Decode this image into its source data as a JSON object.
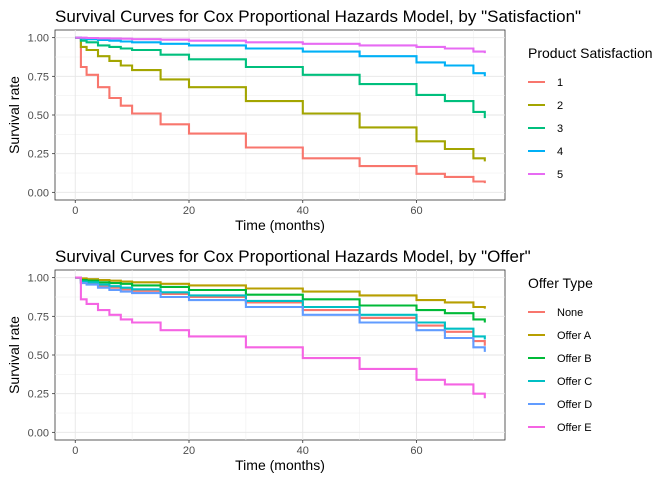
{
  "chart_data": [
    {
      "type": "line",
      "step": true,
      "title": "Survival Curves for Cox Proportional Hazards Model, by \"Satisfaction\"",
      "xlabel": "Time (months)",
      "ylabel": "Survival rate",
      "xlim": [
        0,
        72
      ],
      "ylim": [
        0,
        1
      ],
      "x_ticks": [
        0,
        20,
        40,
        60
      ],
      "y_ticks": [
        0.0,
        0.25,
        0.5,
        0.75,
        1.0
      ],
      "x_tick_labels": [
        "0",
        "20",
        "40",
        "60"
      ],
      "y_tick_labels": [
        "0.00",
        "0.25",
        "0.50",
        "0.75",
        "1.00"
      ],
      "grid": true,
      "legend": {
        "title": "Product Satisfaction",
        "position": "right"
      },
      "x": [
        0,
        1,
        2,
        4,
        6,
        8,
        10,
        15,
        20,
        30,
        40,
        50,
        60,
        65,
        70,
        72
      ],
      "series": [
        {
          "name": "1",
          "color": "#F8766D",
          "values": [
            1.0,
            0.81,
            0.76,
            0.68,
            0.61,
            0.56,
            0.51,
            0.44,
            0.38,
            0.29,
            0.22,
            0.17,
            0.12,
            0.1,
            0.07,
            0.06
          ]
        },
        {
          "name": "2",
          "color": "#A3A500",
          "values": [
            1.0,
            0.94,
            0.92,
            0.88,
            0.85,
            0.82,
            0.79,
            0.73,
            0.68,
            0.59,
            0.51,
            0.42,
            0.33,
            0.28,
            0.22,
            0.2
          ]
        },
        {
          "name": "3",
          "color": "#00BF7D",
          "values": [
            1.0,
            0.98,
            0.97,
            0.95,
            0.94,
            0.93,
            0.92,
            0.89,
            0.86,
            0.81,
            0.76,
            0.7,
            0.63,
            0.59,
            0.52,
            0.48
          ]
        },
        {
          "name": "4",
          "color": "#00B0F6",
          "values": [
            1.0,
            0.995,
            0.99,
            0.985,
            0.98,
            0.975,
            0.97,
            0.96,
            0.95,
            0.93,
            0.91,
            0.88,
            0.84,
            0.82,
            0.77,
            0.75
          ]
        },
        {
          "name": "5",
          "color": "#E76BF3",
          "values": [
            1.0,
            1.0,
            0.998,
            0.996,
            0.995,
            0.993,
            0.99,
            0.987,
            0.98,
            0.97,
            0.96,
            0.95,
            0.94,
            0.93,
            0.91,
            0.9
          ]
        }
      ]
    },
    {
      "type": "line",
      "step": true,
      "title": "Survival Curves for Cox Proportional Hazards Model, by \"Offer\"",
      "xlabel": "Time (months)",
      "ylabel": "Survival rate",
      "xlim": [
        0,
        72
      ],
      "ylim": [
        0,
        1
      ],
      "x_ticks": [
        0,
        20,
        40,
        60
      ],
      "y_ticks": [
        0.0,
        0.25,
        0.5,
        0.75,
        1.0
      ],
      "x_tick_labels": [
        "0",
        "20",
        "40",
        "60"
      ],
      "y_tick_labels": [
        "0.00",
        "0.25",
        "0.50",
        "0.75",
        "1.00"
      ],
      "grid": true,
      "legend": {
        "title": "Offer Type",
        "position": "right"
      },
      "x": [
        0,
        1,
        2,
        4,
        6,
        8,
        10,
        15,
        20,
        30,
        40,
        50,
        60,
        65,
        70,
        72
      ],
      "series": [
        {
          "name": "None",
          "color": "#F8766D",
          "values": [
            1.0,
            0.97,
            0.96,
            0.945,
            0.935,
            0.925,
            0.915,
            0.895,
            0.875,
            0.84,
            0.79,
            0.74,
            0.69,
            0.65,
            0.59,
            0.56
          ]
        },
        {
          "name": "Offer A",
          "color": "#B79F00",
          "values": [
            1.0,
            0.995,
            0.99,
            0.985,
            0.98,
            0.975,
            0.97,
            0.96,
            0.95,
            0.93,
            0.91,
            0.885,
            0.855,
            0.84,
            0.81,
            0.8
          ]
        },
        {
          "name": "Offer B",
          "color": "#00BA38",
          "values": [
            1.0,
            0.985,
            0.98,
            0.97,
            0.965,
            0.96,
            0.95,
            0.94,
            0.92,
            0.89,
            0.86,
            0.82,
            0.79,
            0.77,
            0.73,
            0.71
          ]
        },
        {
          "name": "Offer C",
          "color": "#00BFC4",
          "values": [
            1.0,
            0.975,
            0.97,
            0.955,
            0.945,
            0.935,
            0.925,
            0.905,
            0.885,
            0.85,
            0.81,
            0.76,
            0.71,
            0.67,
            0.62,
            0.6
          ]
        },
        {
          "name": "Offer D",
          "color": "#619CFF",
          "values": [
            1.0,
            0.965,
            0.955,
            0.935,
            0.92,
            0.91,
            0.9,
            0.875,
            0.855,
            0.81,
            0.76,
            0.71,
            0.66,
            0.61,
            0.55,
            0.52
          ]
        },
        {
          "name": "Offer E",
          "color": "#F564E3",
          "values": [
            1.0,
            0.86,
            0.83,
            0.79,
            0.76,
            0.73,
            0.71,
            0.66,
            0.62,
            0.55,
            0.48,
            0.41,
            0.34,
            0.31,
            0.25,
            0.22
          ]
        }
      ]
    }
  ]
}
